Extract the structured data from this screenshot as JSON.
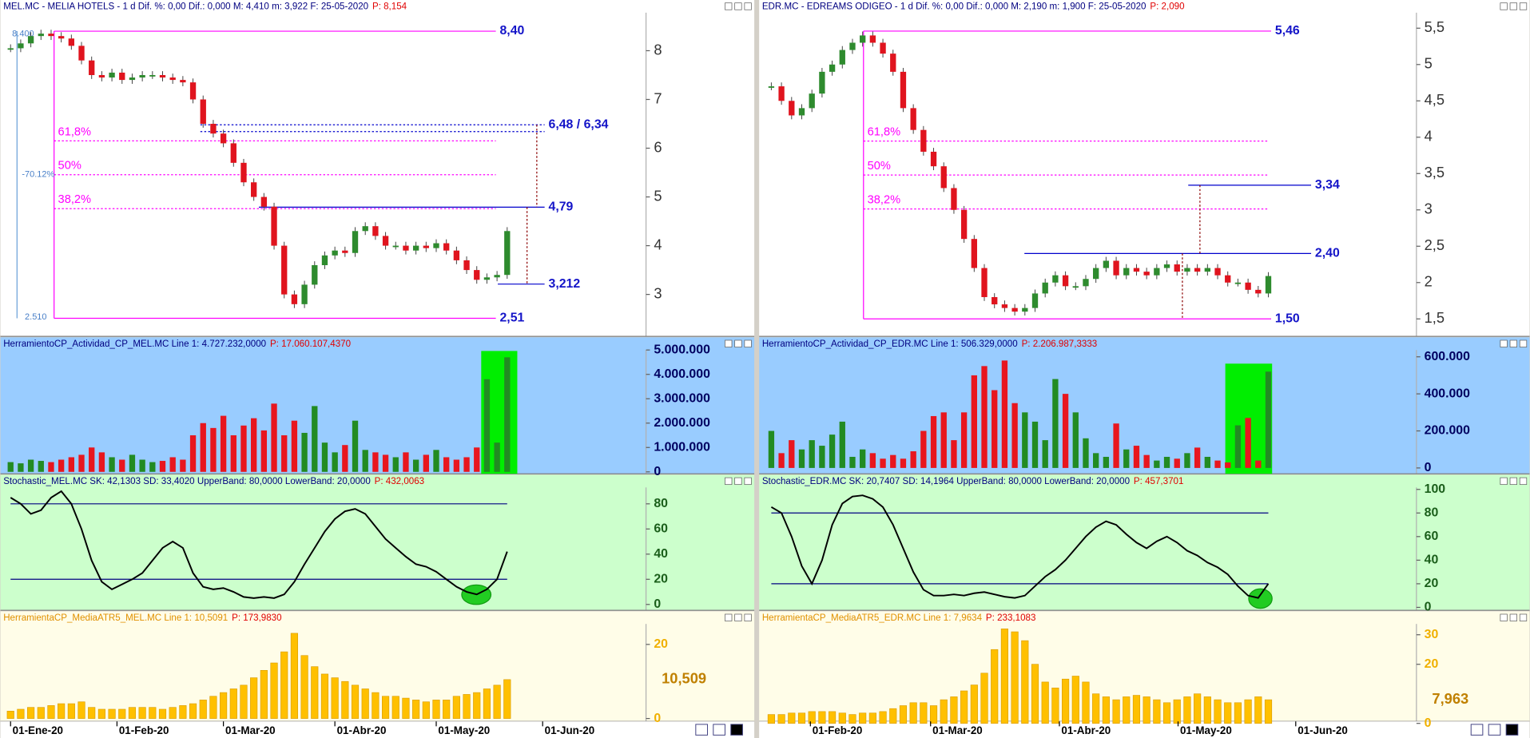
{
  "chart_data": [
    {
      "type": "candlestick",
      "xlim": [
        -1,
        62.7
      ],
      "xticks": [
        {
          "value": 0,
          "label": "01-Ene-20"
        },
        {
          "value": 10.5,
          "label": "01-Feb-20"
        },
        {
          "value": 21,
          "label": "01-Mar-20"
        },
        {
          "value": 32,
          "label": "01-Abr-20"
        },
        {
          "value": 42,
          "label": "01-May-20"
        },
        {
          "value": 52.5,
          "label": "01-Jun-20"
        }
      ],
      "price": {
        "header": "MEL.MC - MELIA HOTELS - 1 d  Dif. %: 0,00  Dif.: 0,000  M: 4,410  m: 3,922  F: 25-05-2020",
        "header_p": "P: 8,154",
        "values": [
          8.05,
          8.15,
          8.3,
          8.35,
          8.3,
          8.25,
          8.1,
          7.8,
          7.5,
          7.45,
          7.55,
          7.4,
          7.45,
          7.5,
          7.5,
          7.45,
          7.4,
          7.35,
          7.0,
          6.5,
          6.3,
          6.1,
          5.7,
          5.3,
          5.0,
          4.8,
          4.0,
          3.0,
          2.8,
          3.2,
          3.6,
          3.8,
          3.9,
          3.85,
          4.3,
          4.4,
          4.2,
          4.0,
          4.0,
          3.9,
          4.0,
          3.95,
          4.05,
          3.9,
          3.7,
          3.5,
          3.3,
          3.35,
          3.4,
          4.3
        ],
        "ylim": [
          2.14,
          8.76
        ],
        "yticks": [
          3,
          4,
          5,
          6,
          7,
          8
        ],
        "levels": [
          {
            "label": "8,40",
            "values": [
              8.4
            ],
            "color": "#ff00ff"
          },
          {
            "label": "2,51",
            "values": [
              2.51
            ],
            "color": "#ff00ff"
          },
          {
            "label": "6,48 / 6,34",
            "values": [
              6.48,
              6.34
            ],
            "color": "#0000cc"
          },
          {
            "label": "4,79",
            "values": [
              4.79
            ],
            "color": "#0000cc"
          },
          {
            "label": "3,212",
            "values": [
              3.212
            ],
            "color": "#0000cc"
          }
        ],
        "fibs": [
          {
            "label": "61,8%",
            "value": 6.15
          },
          {
            "label": "50%",
            "value": 5.455
          },
          {
            "label": "38,2%",
            "value": 4.76
          }
        ],
        "measure": {
          "top": {
            "value": 8.4,
            "label": "8.400"
          },
          "bottom": {
            "value": 2.51,
            "label": "2.510"
          },
          "change": "-70.12%"
        }
      },
      "volume": {
        "header": "HerramientoCP_Actividad_CP_MEL.MC  Line 1: 4.727.232,0000",
        "header_p": "P: 17.060.107,4370",
        "values": [
          400000,
          350000,
          500000,
          450000,
          400000,
          500000,
          600000,
          700000,
          1000000,
          800000,
          600000,
          500000,
          700000,
          500000,
          400000,
          450000,
          600000,
          500000,
          1500000,
          2000000,
          1800000,
          2300000,
          1500000,
          1900000,
          2200000,
          1700000,
          2800000,
          1500000,
          2100000,
          1600000,
          2700000,
          1200000,
          800000,
          1100000,
          2100000,
          900000,
          800000,
          700000,
          600000,
          800000,
          500000,
          700000,
          900000,
          600000,
          500000,
          600000,
          1000000,
          3800000,
          1200000,
          4700000
        ],
        "ylim": [
          0,
          5000000
        ],
        "yticks": [
          0,
          {
            "value": 1000000,
            "label": "1.000.000"
          },
          {
            "value": 2000000,
            "label": "2.000.000"
          },
          {
            "value": 3000000,
            "label": "3.000.000"
          },
          {
            "value": 4000000,
            "label": "4.000.000"
          },
          {
            "value": 5000000,
            "label": "5.000.000"
          }
        ]
      },
      "stochastic": {
        "header": "Stochastic_MEL.MC  SK: 42,1303  SD: 33,4020  UpperBand: 80,0000  LowerBand: 20,0000",
        "header_p": "P: 432,0063",
        "values": [
          85,
          80,
          72,
          75,
          85,
          90,
          80,
          60,
          35,
          18,
          12,
          16,
          20,
          25,
          35,
          45,
          50,
          45,
          25,
          14,
          12,
          13,
          10,
          6,
          5,
          6,
          5,
          8,
          18,
          32,
          45,
          58,
          68,
          74,
          76,
          72,
          62,
          52,
          45,
          38,
          32,
          30,
          26,
          20,
          14,
          10,
          8,
          12,
          20,
          42
        ],
        "ylim": [
          0,
          100
        ],
        "yticks": [
          0,
          20,
          40,
          60,
          80
        ],
        "bands": [
          80,
          20
        ]
      },
      "atr": {
        "header": "HerramientaCP_MediaATR5_MEL.MC  Line 1: 10,5091",
        "header_p": "P: 173,9830",
        "values": [
          2,
          2.5,
          3,
          3,
          3.5,
          4,
          4,
          4.5,
          3,
          2.5,
          2.5,
          2.5,
          3,
          3,
          3,
          2.5,
          3,
          3.5,
          4,
          5,
          6,
          7,
          8,
          9,
          11,
          13,
          15,
          18,
          23,
          17,
          14,
          12,
          11,
          10,
          9,
          8,
          7,
          6,
          6,
          5.5,
          5,
          4.5,
          5,
          5,
          6,
          6.5,
          7,
          8,
          9,
          10.5
        ],
        "ylim": [
          0,
          25
        ],
        "yticks": [
          0,
          20
        ],
        "last_label": {
          "value": 10.509,
          "label": "10,509"
        }
      }
    },
    {
      "type": "candlestick",
      "xlim": [
        -1.2,
        63.6
      ],
      "xticks": [
        {
          "value": 3.85,
          "label": "01-Feb-20"
        },
        {
          "value": 15.7,
          "label": "01-Mar-20"
        },
        {
          "value": 28.4,
          "label": "01-Abr-20"
        },
        {
          "value": 40.1,
          "label": "01-May-20"
        },
        {
          "value": 51.7,
          "label": "01-Jun-20"
        }
      ],
      "price": {
        "header": "EDR.MC - EDREAMS ODIGEO - 1 d  Dif. %: 0,00  Dif.: 0,000  M: 2,190  m: 1,900  F: 25-05-2020",
        "header_p": "P: 2,090",
        "values": [
          4.7,
          4.5,
          4.3,
          4.4,
          4.6,
          4.9,
          5.0,
          5.2,
          5.3,
          5.4,
          5.3,
          5.15,
          4.9,
          4.4,
          4.1,
          3.8,
          3.6,
          3.3,
          3.0,
          2.6,
          2.2,
          1.8,
          1.7,
          1.65,
          1.6,
          1.65,
          1.85,
          2.0,
          2.1,
          1.95,
          1.95,
          2.05,
          2.2,
          2.3,
          2.1,
          2.2,
          2.15,
          2.1,
          2.2,
          2.25,
          2.15,
          2.2,
          2.15,
          2.2,
          2.1,
          2.0,
          2.0,
          1.9,
          1.85,
          2.09
        ],
        "ylim": [
          1.26,
          5.7
        ],
        "yticks": [
          {
            "value": 1.5,
            "label": "1,5"
          },
          2,
          {
            "value": 2.5,
            "label": "2,5"
          },
          3,
          {
            "value": 3.5,
            "label": "3,5"
          },
          4,
          {
            "value": 4.5,
            "label": "4,5"
          },
          5,
          {
            "value": 5.5,
            "label": "5,5"
          }
        ],
        "levels": [
          {
            "label": "5,46",
            "values": [
              5.46
            ],
            "color": "#ff00ff"
          },
          {
            "label": "1,50",
            "values": [
              1.5
            ],
            "color": "#ff00ff"
          },
          {
            "label": "3,34",
            "values": [
              3.34
            ],
            "color": "#0000cc"
          },
          {
            "label": "2,40",
            "values": [
              2.4
            ],
            "color": "#0000cc"
          }
        ],
        "fibs": [
          {
            "label": "61,8%",
            "value": 3.947
          },
          {
            "label": "50%",
            "value": 3.48
          },
          {
            "label": "38,2%",
            "value": 3.013
          }
        ]
      },
      "volume": {
        "header": "HerramientoCP_Actividad_CP_EDR.MC  Line 1: 506.329,0000",
        "header_p": "P: 2.206.987,3333",
        "values": [
          200000,
          80000,
          150000,
          100000,
          150000,
          120000,
          180000,
          250000,
          60000,
          100000,
          80000,
          50000,
          70000,
          50000,
          90000,
          200000,
          280000,
          300000,
          150000,
          300000,
          500000,
          550000,
          420000,
          580000,
          350000,
          300000,
          250000,
          150000,
          480000,
          400000,
          300000,
          160000,
          80000,
          60000,
          240000,
          100000,
          120000,
          70000,
          40000,
          60000,
          50000,
          80000,
          110000,
          60000,
          40000,
          30000,
          230000,
          270000,
          40000,
          520000
        ],
        "ylim": [
          0,
          600000
        ],
        "yticks": [
          0,
          {
            "value": 200000,
            "label": "200.000"
          },
          {
            "value": 400000,
            "label": "400.000"
          },
          {
            "value": 600000,
            "label": "600.000"
          }
        ]
      },
      "stochastic": {
        "header": "Stochastic_EDR.MC  SK: 20,7407  SD: 14,1964  UpperBand: 80,0000  LowerBand: 20,0000",
        "header_p": "P: 457,3701",
        "values": [
          85,
          80,
          60,
          35,
          20,
          40,
          70,
          88,
          94,
          95,
          92,
          85,
          70,
          50,
          30,
          15,
          10,
          10,
          11,
          10,
          12,
          13,
          11,
          9,
          8,
          10,
          18,
          26,
          32,
          40,
          50,
          60,
          68,
          73,
          70,
          62,
          55,
          50,
          56,
          60,
          55,
          48,
          44,
          38,
          34,
          28,
          18,
          10,
          8,
          20
        ],
        "ylim": [
          0,
          100
        ],
        "yticks": [
          0,
          20,
          40,
          60,
          80,
          100
        ],
        "bands": [
          80,
          20
        ]
      },
      "atr": {
        "header": "HerramientaCP_MediaATR5_EDR.MC  Line 1: 7,9634",
        "header_p": "P: 233,1083",
        "values": [
          3,
          3,
          3.5,
          3.5,
          4,
          4,
          4,
          3.5,
          3,
          3.5,
          3.5,
          4,
          5,
          6,
          7,
          7,
          6,
          8,
          9,
          11,
          13,
          17,
          25,
          32,
          31,
          28,
          20,
          14,
          12,
          15,
          16,
          14,
          10,
          9,
          8,
          9,
          9.5,
          9,
          8,
          7,
          8,
          9,
          10,
          9,
          8,
          7,
          7,
          8,
          9,
          8
        ],
        "ylim": [
          0,
          33
        ],
        "yticks": [
          0,
          20,
          30
        ],
        "last_label": {
          "value": 7.963,
          "label": "7,963"
        }
      }
    }
  ]
}
